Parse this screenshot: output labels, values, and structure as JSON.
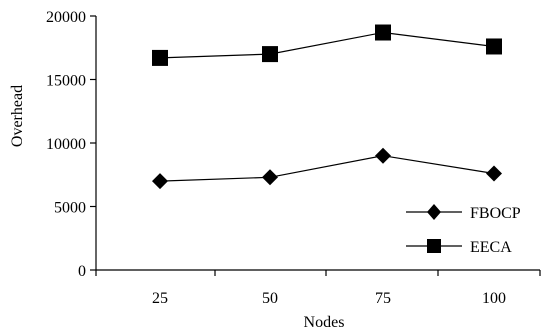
{
  "chart_data": {
    "type": "line",
    "categories": [
      "25",
      "50",
      "75",
      "100"
    ],
    "series": [
      {
        "name": "FBOCP",
        "marker": "diamond",
        "values": [
          7000,
          7300,
          9000,
          7600
        ]
      },
      {
        "name": "EECA",
        "marker": "square",
        "values": [
          16700,
          17000,
          18700,
          17600
        ]
      }
    ],
    "xlabel": "Nodes",
    "ylabel": "Overhead",
    "ylim": [
      0,
      20000
    ],
    "yticks": [
      0,
      5000,
      10000,
      15000,
      20000
    ],
    "ytick_labels": [
      "0",
      "5000",
      "10000",
      "15000",
      "20000"
    ],
    "grid": false,
    "legend_position": "bottom-right",
    "colors": {
      "line": "#000000",
      "marker": "#000000"
    }
  }
}
